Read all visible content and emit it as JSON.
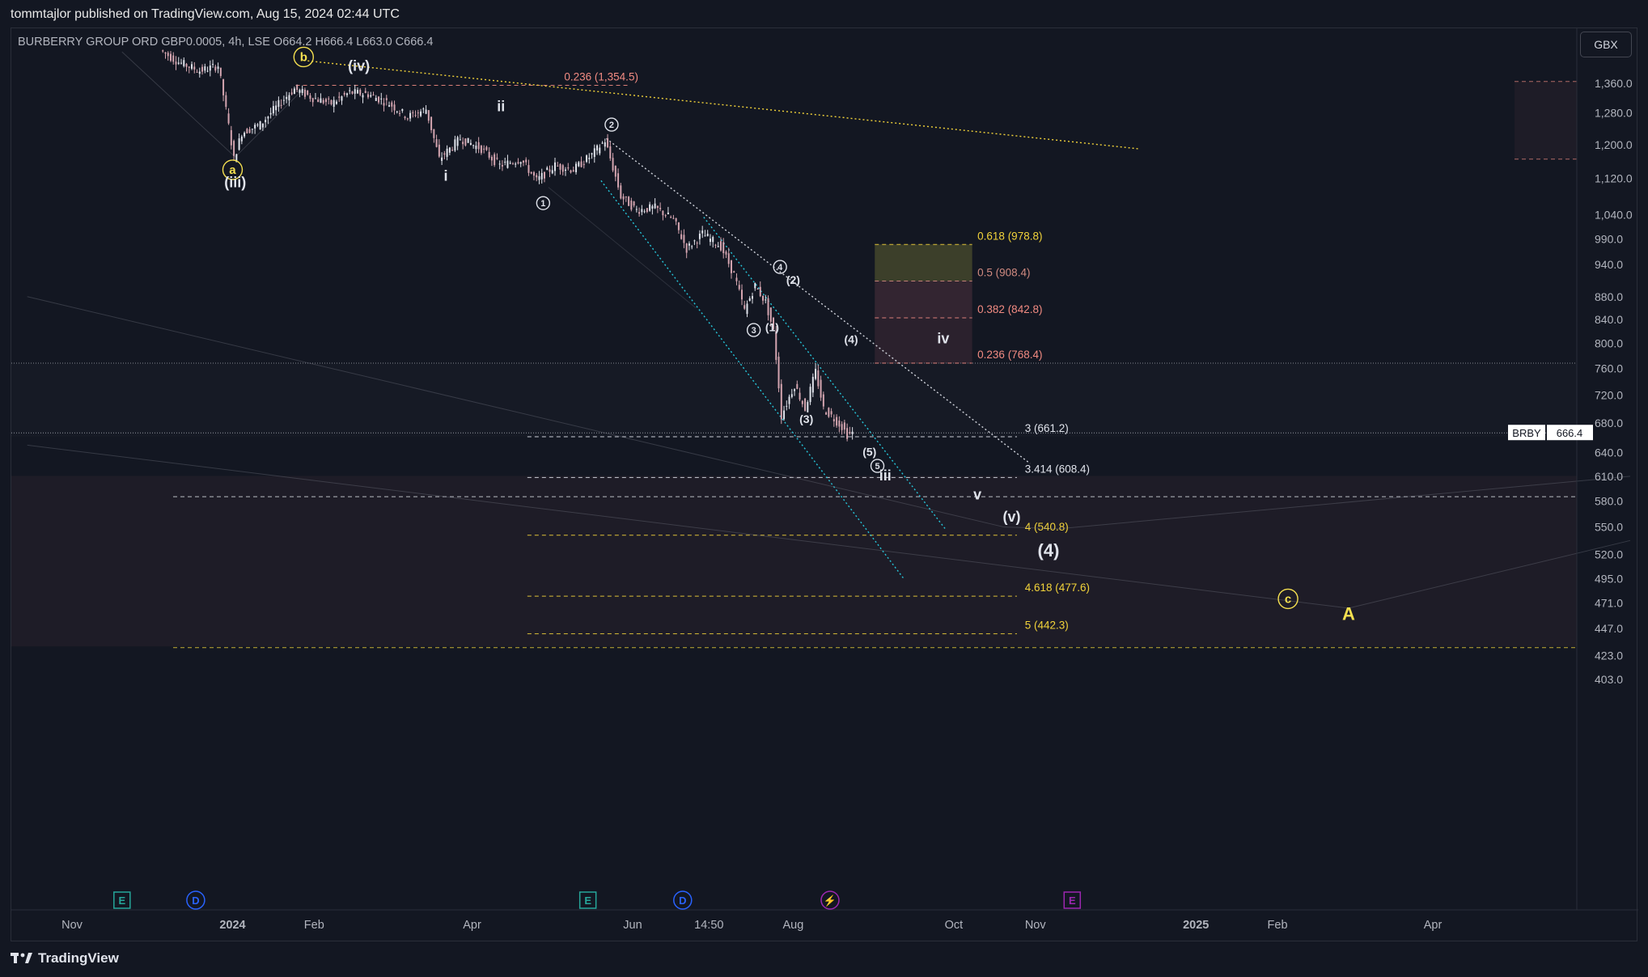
{
  "header": {
    "publisher": "tommtajlor published on TradingView.com, Aug 15, 2024 02:44 UTC"
  },
  "symbol": {
    "title": "BURBERRY GROUP ORD GBP0.0005, 4h, LSE",
    "ohlc": "O664.2 H666.4 L663.0 C666.4",
    "ticker": "BRBY",
    "last_price": "666.4",
    "currency": "GBX"
  },
  "footer": {
    "brand": "TradingView",
    "logo_icon": "tradingview-logo-icon"
  },
  "colors": {
    "background": "#131722",
    "grid_text": "#b2b5be",
    "candle_up": "#e0e3eb",
    "candle_down": "#d4a5b0",
    "fib_yellow": "#f2d33a",
    "fib_red": "#f28b82",
    "channel_cyan": "#26c6da",
    "wave_yellow": "#f5e050"
  },
  "chart_data": {
    "type": "candlestick",
    "y_scale": "log",
    "ylim": [
      385,
      1460
    ],
    "y_ticks": [
      "1,360.0",
      "1,280.0",
      "1,200.0",
      "1,120.0",
      "1,040.0",
      "990.0",
      "940.0",
      "880.0",
      "840.0",
      "800.0",
      "760.0",
      "720.0",
      "680.0",
      "640.0",
      "610.0",
      "580.0",
      "550.0",
      "520.0",
      "495.0",
      "471.0",
      "447.0",
      "423.0",
      "403.0"
    ],
    "x_ticks": [
      {
        "label": "Nov",
        "date": "2023-11-01"
      },
      {
        "label": "2024",
        "date": "2024-01-01",
        "bold": true
      },
      {
        "label": "Feb",
        "date": "2024-02-01"
      },
      {
        "label": "Apr",
        "date": "2024-04-01"
      },
      {
        "label": "Jun",
        "date": "2024-06-01"
      },
      {
        "label": "14:50",
        "date": "2024-06-30"
      },
      {
        "label": "Aug",
        "date": "2024-08-01"
      },
      {
        "label": "Oct",
        "date": "2024-10-01"
      },
      {
        "label": "Nov",
        "date": "2024-11-01"
      },
      {
        "label": "2025",
        "date": "2025-01-01",
        "bold": true
      },
      {
        "label": "Feb",
        "date": "2025-02-01"
      },
      {
        "label": "Apr",
        "date": "2025-04-01"
      }
    ],
    "price_path": [
      [
        "2023-12-05",
        1455
      ],
      [
        "2023-12-12",
        1420
      ],
      [
        "2023-12-20",
        1395
      ],
      [
        "2023-12-27",
        1410
      ],
      [
        "2024-01-02",
        1165
      ],
      [
        "2024-01-05",
        1230
      ],
      [
        "2024-01-12",
        1250
      ],
      [
        "2024-01-20",
        1310
      ],
      [
        "2024-01-25",
        1345
      ],
      [
        "2024-02-01",
        1320
      ],
      [
        "2024-02-08",
        1305
      ],
      [
        "2024-02-15",
        1335
      ],
      [
        "2024-02-22",
        1330
      ],
      [
        "2024-03-01",
        1305
      ],
      [
        "2024-03-08",
        1270
      ],
      [
        "2024-03-15",
        1290
      ],
      [
        "2024-03-20",
        1165
      ],
      [
        "2024-03-28",
        1215
      ],
      [
        "2024-04-05",
        1190
      ],
      [
        "2024-04-12",
        1150
      ],
      [
        "2024-04-20",
        1165
      ],
      [
        "2024-04-26",
        1115
      ],
      [
        "2024-05-03",
        1150
      ],
      [
        "2024-05-10",
        1140
      ],
      [
        "2024-05-17",
        1175
      ],
      [
        "2024-05-22",
        1210
      ],
      [
        "2024-05-28",
        1080
      ],
      [
        "2024-06-03",
        1050
      ],
      [
        "2024-06-10",
        1055
      ],
      [
        "2024-06-17",
        1030
      ],
      [
        "2024-06-22",
        970
      ],
      [
        "2024-06-28",
        1000
      ],
      [
        "2024-07-05",
        975
      ],
      [
        "2024-07-10",
        920
      ],
      [
        "2024-07-14",
        855
      ],
      [
        "2024-07-18",
        900
      ],
      [
        "2024-07-22",
        870
      ],
      [
        "2024-07-25",
        820
      ],
      [
        "2024-07-28",
        690
      ],
      [
        "2024-08-02",
        735
      ],
      [
        "2024-08-06",
        700
      ],
      [
        "2024-08-10",
        755
      ],
      [
        "2024-08-13",
        700
      ],
      [
        "2024-08-16",
        690
      ],
      [
        "2024-08-20",
        675
      ],
      [
        "2024-08-22",
        664
      ],
      [
        "2024-08-24",
        666.4
      ]
    ],
    "current_price": 666.4,
    "fib_levels": [
      {
        "label": "0.236 (1,354.5)",
        "price": 1354.5,
        "color": "#f28b82",
        "from": "2024-01-25",
        "to": "2024-05-31",
        "label_date": "2024-05-06"
      },
      {
        "label": "0.618 (978.8)",
        "price": 978.8,
        "color": "#f2d33a",
        "from": "2024-09-01",
        "to": "2024-10-08",
        "label_date": "2024-10-10"
      },
      {
        "label": "0.5 (908.4)",
        "price": 908.4,
        "color": "#d08a80",
        "from": "2024-09-01",
        "to": "2024-10-08",
        "label_date": "2024-10-10"
      },
      {
        "label": "0.382 (842.8)",
        "price": 842.8,
        "color": "#f28b82",
        "from": "2024-09-01",
        "to": "2024-10-08",
        "label_date": "2024-10-10"
      },
      {
        "label": "0.236 (768.4)",
        "price": 768.4,
        "color": "#f28b82",
        "from": "2024-09-01",
        "to": "2024-10-08",
        "label_date": "2024-10-10"
      },
      {
        "label": "3 (661.2)",
        "price": 661.2,
        "color": "#e0e3eb",
        "from": "2024-04-22",
        "to": "2024-10-25",
        "label_date": "2024-10-28"
      },
      {
        "label": "3.414 (608.4)",
        "price": 608.4,
        "color": "#e0e3eb",
        "from": "2024-04-22",
        "to": "2024-10-25",
        "label_date": "2024-10-28"
      },
      {
        "label": "4 (540.8)",
        "price": 540.8,
        "color": "#f2d33a",
        "from": "2024-04-22",
        "to": "2024-10-25",
        "label_date": "2024-10-28"
      },
      {
        "label": "4.618 (477.6)",
        "price": 477.6,
        "color": "#f2d33a",
        "from": "2024-04-22",
        "to": "2024-10-25",
        "label_date": "2024-10-28"
      },
      {
        "label": "5 (442.3)",
        "price": 442.3,
        "color": "#f2d33a",
        "from": "2024-04-22",
        "to": "2024-10-25",
        "label_date": "2024-10-28"
      }
    ],
    "wave_labels": [
      {
        "text": "a",
        "date": "2024-01-01",
        "price": 1140,
        "circle": true,
        "color": "#f5e050"
      },
      {
        "text": "b",
        "date": "2024-01-28",
        "price": 1435,
        "circle": true,
        "color": "#f5e050"
      },
      {
        "text": "c",
        "date": "2025-02-05",
        "price": 475,
        "circle": true,
        "color": "#f5e050"
      },
      {
        "text": "A",
        "date": "2025-02-28",
        "price": 455,
        "circle": false,
        "color": "#f5e050",
        "size": 22
      },
      {
        "text": "(iii)",
        "date": "2024-01-02",
        "price": 1100,
        "circle": false,
        "color": "#e0e3eb",
        "size": 18
      },
      {
        "text": "(iv)",
        "date": "2024-02-18",
        "price": 1395,
        "circle": false,
        "color": "#e0e3eb",
        "size": 18
      },
      {
        "text": "i",
        "date": "2024-03-22",
        "price": 1115,
        "circle": false,
        "color": "#e0e3eb",
        "size": 18
      },
      {
        "text": "ii",
        "date": "2024-04-12",
        "price": 1285,
        "circle": false,
        "color": "#e0e3eb",
        "size": 18
      },
      {
        "text": "1",
        "date": "2024-04-28",
        "price": 1065,
        "circle": true,
        "color": "#e0e3eb"
      },
      {
        "text": "2",
        "date": "2024-05-24",
        "price": 1250,
        "circle": true,
        "color": "#e0e3eb"
      },
      {
        "text": "3",
        "date": "2024-07-17",
        "price": 822,
        "circle": true,
        "color": "#e0e3eb"
      },
      {
        "text": "4",
        "date": "2024-07-27",
        "price": 935,
        "circle": true,
        "color": "#e0e3eb"
      },
      {
        "text": "(1)",
        "date": "2024-07-24",
        "price": 820,
        "circle": false,
        "color": "#e0e3eb",
        "size": 14
      },
      {
        "text": "(2)",
        "date": "2024-08-01",
        "price": 903,
        "circle": false,
        "color": "#e0e3eb",
        "size": 14
      },
      {
        "text": "(3)",
        "date": "2024-08-06",
        "price": 680,
        "circle": false,
        "color": "#e0e3eb",
        "size": 14
      },
      {
        "text": "(4)",
        "date": "2024-08-23",
        "price": 800,
        "circle": false,
        "color": "#e0e3eb",
        "size": 14
      },
      {
        "text": "(5)",
        "date": "2024-08-30",
        "price": 636,
        "circle": false,
        "color": "#e0e3eb",
        "size": 14
      },
      {
        "text": "5",
        "date": "2024-09-02",
        "price": 623,
        "circle": true,
        "color": "#e0e3eb"
      },
      {
        "text": "iii",
        "date": "2024-09-05",
        "price": 605,
        "circle": false,
        "color": "#e0e3eb",
        "size": 18
      },
      {
        "text": "iv",
        "date": "2024-09-27",
        "price": 800,
        "circle": false,
        "color": "#e0e3eb",
        "size": 18
      },
      {
        "text": "v",
        "date": "2024-10-10",
        "price": 582,
        "circle": false,
        "color": "#e0e3eb",
        "size": 18
      },
      {
        "text": "(v)",
        "date": "2024-10-23",
        "price": 556,
        "circle": false,
        "color": "#e0e3eb",
        "size": 18
      },
      {
        "text": "(4)",
        "date": "2024-11-06",
        "price": 518,
        "circle": false,
        "color": "#e0e3eb",
        "size": 22
      }
    ],
    "event_markers": [
      {
        "letter": "E",
        "date": "2023-11-20",
        "color": "#26a69a",
        "icon": "earnings-icon"
      },
      {
        "letter": "D",
        "date": "2023-12-18",
        "color": "#2962ff",
        "icon": "dividend-icon"
      },
      {
        "letter": "E",
        "date": "2024-05-15",
        "color": "#26a69a",
        "icon": "earnings-icon"
      },
      {
        "letter": "D",
        "date": "2024-06-20",
        "color": "#2962ff",
        "icon": "dividend-icon"
      },
      {
        "letter": "⚡",
        "date": "2024-08-15",
        "color": "#9c27b0",
        "icon": "split-icon"
      },
      {
        "letter": "E",
        "date": "2024-11-15",
        "color": "#9c27b0",
        "icon": "earnings-icon"
      }
    ]
  }
}
